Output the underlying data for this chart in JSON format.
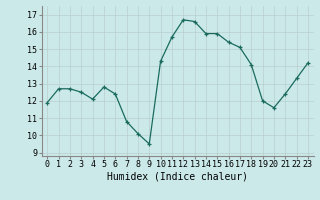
{
  "x": [
    0,
    1,
    2,
    3,
    4,
    5,
    6,
    7,
    8,
    9,
    10,
    11,
    12,
    13,
    14,
    15,
    16,
    17,
    18,
    19,
    20,
    21,
    22,
    23
  ],
  "y": [
    11.9,
    12.7,
    12.7,
    12.5,
    12.1,
    12.8,
    12.4,
    10.8,
    10.1,
    9.5,
    14.3,
    15.7,
    16.7,
    16.6,
    15.9,
    15.9,
    15.4,
    15.1,
    14.1,
    12.0,
    11.6,
    12.4,
    13.3,
    14.2
  ],
  "line_color": "#1a6b5e",
  "marker": "+",
  "marker_size": 3,
  "bg_color": "#cce9e9",
  "grid_color": "#b8cece",
  "xlabel": "Humidex (Indice chaleur)",
  "xlabel_fontsize": 7,
  "tick_fontsize": 6,
  "ylim": [
    8.8,
    17.5
  ],
  "xlim": [
    -0.5,
    23.5
  ],
  "yticks": [
    9,
    10,
    11,
    12,
    13,
    14,
    15,
    16,
    17
  ],
  "xticks": [
    0,
    1,
    2,
    3,
    4,
    5,
    6,
    7,
    8,
    9,
    10,
    11,
    12,
    13,
    14,
    15,
    16,
    17,
    18,
    19,
    20,
    21,
    22,
    23
  ]
}
